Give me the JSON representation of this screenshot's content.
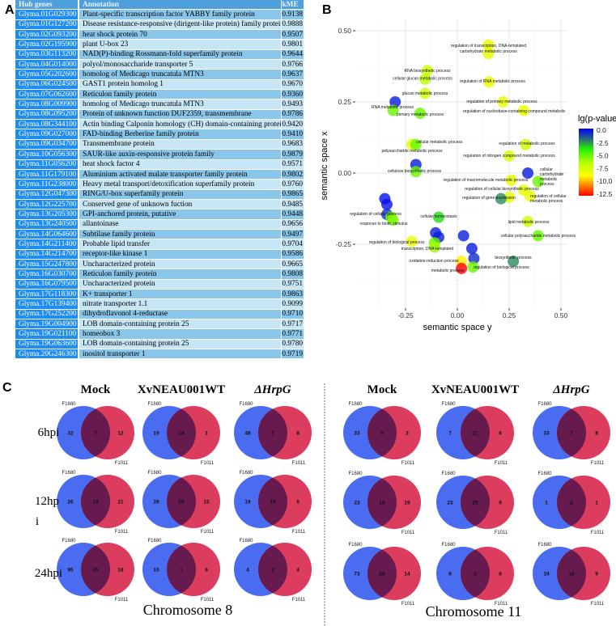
{
  "panel_labels": {
    "a": "A",
    "b": "B",
    "c": "C"
  },
  "table": {
    "headers": [
      "Hub genes",
      "Annotation",
      "kME"
    ],
    "rows": [
      [
        "Glyma.01G029300",
        "Plant-specific transcription factor YABBY family protein",
        "0.9138"
      ],
      [
        "Glyma.01G127200",
        "Disease resistance-responsive (dirigent-like protein) family protein",
        "0.9888"
      ],
      [
        "Glyma.02G093200",
        "heat shock protein 70",
        "0.9507"
      ],
      [
        "Glyma.02G195900",
        "plant U-box 23",
        "0.9801"
      ],
      [
        "Glyma.03G113200",
        "NAD(P)-binding Rossmann-fold superfamily protein",
        "0.9644"
      ],
      [
        "Glyma.04G014000",
        "polyol/monosaccharide transporter 5",
        "0.9766"
      ],
      [
        "Glyma.05G202600",
        "homolog of Medicago truncatula MTN3",
        "0.9637"
      ],
      [
        "Glyma.06G024500",
        "GAST1 protein homolog 1",
        "0.9670"
      ],
      [
        "Glyma.07G062600",
        "Reticulon family protein",
        "0.9360"
      ],
      [
        "Glyma.08G009900",
        "homolog of Medicago truncatula MTN3",
        "0.9493"
      ],
      [
        "Glyma.08G095200",
        "Protein of unknown function DUF2359, transmembrane",
        "0.9786"
      ],
      [
        "Glyma.08G344100",
        "Actin binding Calponin homology (CH) domain-containing protein",
        "0.9420"
      ],
      [
        "Glyma.09G027000",
        "FAD-binding Berberine family protein",
        "0.9410"
      ],
      [
        "Glyma.09G034700",
        "Transmembrane protein",
        "0.9683"
      ],
      [
        "Glyma.10G056300",
        "SAUR-like auxin-responsive protein family",
        "0.9879"
      ],
      [
        "Glyma.11G056200",
        "heat shock factor 4",
        "0.9571"
      ],
      [
        "Glyma.11G179100",
        "Aluminium activated malate transporter family protein",
        "0.9802"
      ],
      [
        "Glyma.11G238000",
        "Heavy metal transport/detoxification superfamily protein",
        "0.9760"
      ],
      [
        "Glyma.12G047300",
        "RING/U-box superfamily protein",
        "0.9865"
      ],
      [
        "Glyma.12G225700",
        "Conserved gene of unknown fuction",
        "0.9485"
      ],
      [
        "Glyma.13G205300",
        "GPI-anchored protein, putative",
        "0.9448"
      ],
      [
        "Glyma.13G240500",
        "allantoinase",
        "0.9656"
      ],
      [
        "Glyma.14G064600",
        "Subtilase family protein",
        "0.9497"
      ],
      [
        "Glyma.14G211400",
        "Probable lipid transfer",
        "0.9704"
      ],
      [
        "Glyma.14G214700",
        "receptor-like kinase 1",
        "0.9586"
      ],
      [
        "Glyma.15G247800",
        "Uncharacterized protein",
        "0.9665"
      ],
      [
        "Glyma.16G030700",
        "Reticulon family protein",
        "0.9808"
      ],
      [
        "Glyma.16G079500",
        "Uncharacterized protein",
        "0.9751"
      ],
      [
        "Glyma.17G118300",
        "K+ transporter 1",
        "0.9863"
      ],
      [
        "Glyma.17G139400",
        "nitrate transporter 1.1",
        "0.9099"
      ],
      [
        "Glyma.17G252200",
        "dihydroflavonol 4-reductase",
        "0.9710"
      ],
      [
        "Glyma.19G004900",
        "LOB domain-containing protein 25",
        "0.9717"
      ],
      [
        "Glyma.19G021100",
        "homeobox 3",
        "0.9771"
      ],
      [
        "Glyma.19G063600",
        "LOB domain-containing protein 25",
        "0.9780"
      ],
      [
        "Glyma.20G246300",
        "inositol transporter 1",
        "0.9719"
      ]
    ]
  },
  "chart_data": [
    {
      "type": "scatter",
      "xlabel": "semantic space y",
      "ylabel": "semantic space x",
      "xticks": [
        -0.25,
        0.0,
        0.25,
        0.5
      ],
      "xtick_labels": [
        "-0.25",
        "0.00",
        "0.25",
        "0.50"
      ],
      "yticks": [
        0.5,
        0.25,
        0.0,
        -0.25
      ],
      "ytick_labels": [
        "0.50",
        "0.25",
        "0.00",
        "-0.25"
      ],
      "xlim": [
        -0.49,
        0.53
      ],
      "ylim": [
        -0.47,
        0.54
      ],
      "grid": true,
      "legend": {
        "title": "lg(p-value)",
        "placement": "right",
        "ticks": [
          0.0,
          -2.5,
          -5.0,
          -7.5,
          -10.0,
          -12.5
        ],
        "tick_labels": [
          "0.0",
          "-2.5",
          "-5.0",
          "-7.5",
          "-10.0",
          "-12.5"
        ],
        "range": [
          0.0,
          -12.5
        ]
      },
      "points": [
        {
          "x": 0.15,
          "y": 0.45,
          "lg": -8,
          "label": "regulation of transcription, DNA-templated"
        },
        {
          "x": 0.15,
          "y": 0.42,
          "lg": -8,
          "label": "carbohydrate metabolic process"
        },
        {
          "x": -0.145,
          "y": 0.36,
          "lg": -7,
          "label": "RNA biosynthetic process"
        },
        {
          "x": -0.156,
          "y": 0.33,
          "lg": -6.5,
          "label": "cellular glucan metabolic process"
        },
        {
          "x": -0.156,
          "y": 0.28,
          "lg": -7,
          "label": "glucan metabolic process"
        },
        {
          "x": 0.153,
          "y": 0.32,
          "lg": -8,
          "label": "regulation of RNA metabolic process"
        },
        {
          "x": 0.22,
          "y": 0.25,
          "lg": -8,
          "label": "regulation of primary metabolic process"
        },
        {
          "x": 0.32,
          "y": 0.22,
          "lg": -8,
          "label": "regulation of nucleobase-containing compound metabolic"
        },
        {
          "x": -0.3,
          "y": 0.25,
          "lg": -0.5,
          "label": ""
        },
        {
          "x": -0.31,
          "y": 0.22,
          "lg": -5,
          "label": "RNA metabolic process"
        },
        {
          "x": -0.18,
          "y": 0.21,
          "lg": -5,
          "label": "primary metabolic process"
        },
        {
          "x": -0.22,
          "y": 0.1,
          "lg": -8,
          "label": "polysaccharide metabolic process"
        },
        {
          "x": -0.2,
          "y": 0.1,
          "lg": -5,
          "label": "cellular metabolic process"
        },
        {
          "x": -0.2,
          "y": 0.03,
          "lg": -0.5,
          "label": ""
        },
        {
          "x": -0.2,
          "y": 0.005,
          "lg": -5,
          "label": "cellulose biosynthetic process"
        },
        {
          "x": -0.35,
          "y": -0.09,
          "lg": -0.3,
          "label": ""
        },
        {
          "x": -0.34,
          "y": -0.11,
          "lg": -0.3,
          "label": ""
        },
        {
          "x": -0.34,
          "y": -0.145,
          "lg": -0.8,
          "label": ""
        },
        {
          "x": -0.32,
          "y": -0.155,
          "lg": -5,
          "label": "regulation of cellular process"
        },
        {
          "x": -0.31,
          "y": -0.165,
          "lg": -5.5,
          "label": "response to biotic stimulus"
        },
        {
          "x": -0.09,
          "y": -0.155,
          "lg": -3.5,
          "label": "cellular homeostasis"
        },
        {
          "x": -0.105,
          "y": -0.21,
          "lg": -0.5,
          "label": ""
        },
        {
          "x": -0.09,
          "y": -0.225,
          "lg": -0.5,
          "label": ""
        },
        {
          "x": -0.22,
          "y": -0.24,
          "lg": -8,
          "label": "regulation of biological process"
        },
        {
          "x": -0.11,
          "y": -0.245,
          "lg": -5,
          "label": "transcription, DNA-templated"
        },
        {
          "x": -0.11,
          "y": -0.26,
          "lg": -6,
          "label": ""
        },
        {
          "x": 0.03,
          "y": -0.22,
          "lg": -0.5,
          "label": ""
        },
        {
          "x": 0.07,
          "y": -0.265,
          "lg": -0.5,
          "label": ""
        },
        {
          "x": 0.08,
          "y": -0.3,
          "lg": -0.8,
          "label": ""
        },
        {
          "x": 0.02,
          "y": -0.31,
          "lg": -9,
          "label": "oxidation-reduction process"
        },
        {
          "x": 0.02,
          "y": -0.335,
          "lg": -12.5,
          "label": "metabolic process"
        },
        {
          "x": 0.075,
          "y": -0.33,
          "lg": -5,
          "label": "regulation of biological process"
        },
        {
          "x": 0.27,
          "y": -0.31,
          "lg": -2.5,
          "label": "biosynthetic process"
        },
        {
          "x": 0.33,
          "y": 0.1,
          "lg": -7,
          "label": "regulation of metabolic process"
        },
        {
          "x": 0.25,
          "y": 0.06,
          "lg": -7.5,
          "label": "regulation of nitrogen compound metabolic process"
        },
        {
          "x": 0.34,
          "y": 0.0,
          "lg": -0.5,
          "label": ""
        },
        {
          "x": 0.39,
          "y": -0.03,
          "lg": -5,
          "label": "cellular carbohydrate metabolic process"
        },
        {
          "x": 0.26,
          "y": -0.025,
          "lg": -8,
          "label": "regulation of macromolecule metabolic process"
        },
        {
          "x": 0.32,
          "y": -0.06,
          "lg": -8,
          "label": "regulation of cellular biosynthetic process"
        },
        {
          "x": 0.25,
          "y": -0.085,
          "lg": -8,
          "label": "regulation of gene expression"
        },
        {
          "x": 0.21,
          "y": -0.09,
          "lg": -2.5,
          "label": ""
        },
        {
          "x": 0.35,
          "y": -0.08,
          "lg": -8,
          "label": "regulation of cellular metabolic process"
        },
        {
          "x": 0.34,
          "y": -0.17,
          "lg": -7,
          "label": "lipid metabolic process"
        },
        {
          "x": 0.39,
          "y": -0.22,
          "lg": -5,
          "label": "cellular polysaccharide metabolic process"
        }
      ]
    }
  ],
  "venn": {
    "set_a": "F1680",
    "set_b": "F1011",
    "colors": {
      "a": "#4a6cf0",
      "b": "#dc3c5e",
      "overlap": "#661a4e"
    },
    "columns": [
      "Mock",
      "XvNEAU001WT",
      "ΔHrpG"
    ],
    "rows": [
      "6hpi",
      "12hpi",
      "24hpi"
    ],
    "row_labels": [
      "6hpi",
      "12hp",
      "i",
      "24hpi"
    ],
    "chromosomes": [
      {
        "name": "Chromosome 8",
        "counts": [
          [
            [
              32,
              7,
              12
            ],
            [
              19,
              14,
              1
            ],
            [
              48,
              7,
              8
            ]
          ],
          [
            [
              26,
              10,
              21
            ],
            [
              29,
              26,
              15
            ],
            [
              19,
              19,
              5
            ]
          ],
          [
            [
              95,
              35,
              18
            ],
            [
              10,
              1,
              6
            ],
            [
              4,
              2,
              4
            ]
          ]
        ]
      },
      {
        "name": "Chromosome 11",
        "counts": [
          [
            [
              33,
              9,
              2
            ],
            [
              7,
              11,
              6
            ],
            [
              33,
              7,
              8
            ]
          ],
          [
            [
              23,
              10,
              19
            ],
            [
              23,
              25,
              9
            ],
            [
              1,
              2,
              1
            ]
          ],
          [
            [
              73,
              20,
              14
            ],
            [
              9,
              5,
              8
            ],
            [
              19,
              16,
              9
            ]
          ]
        ]
      }
    ]
  }
}
